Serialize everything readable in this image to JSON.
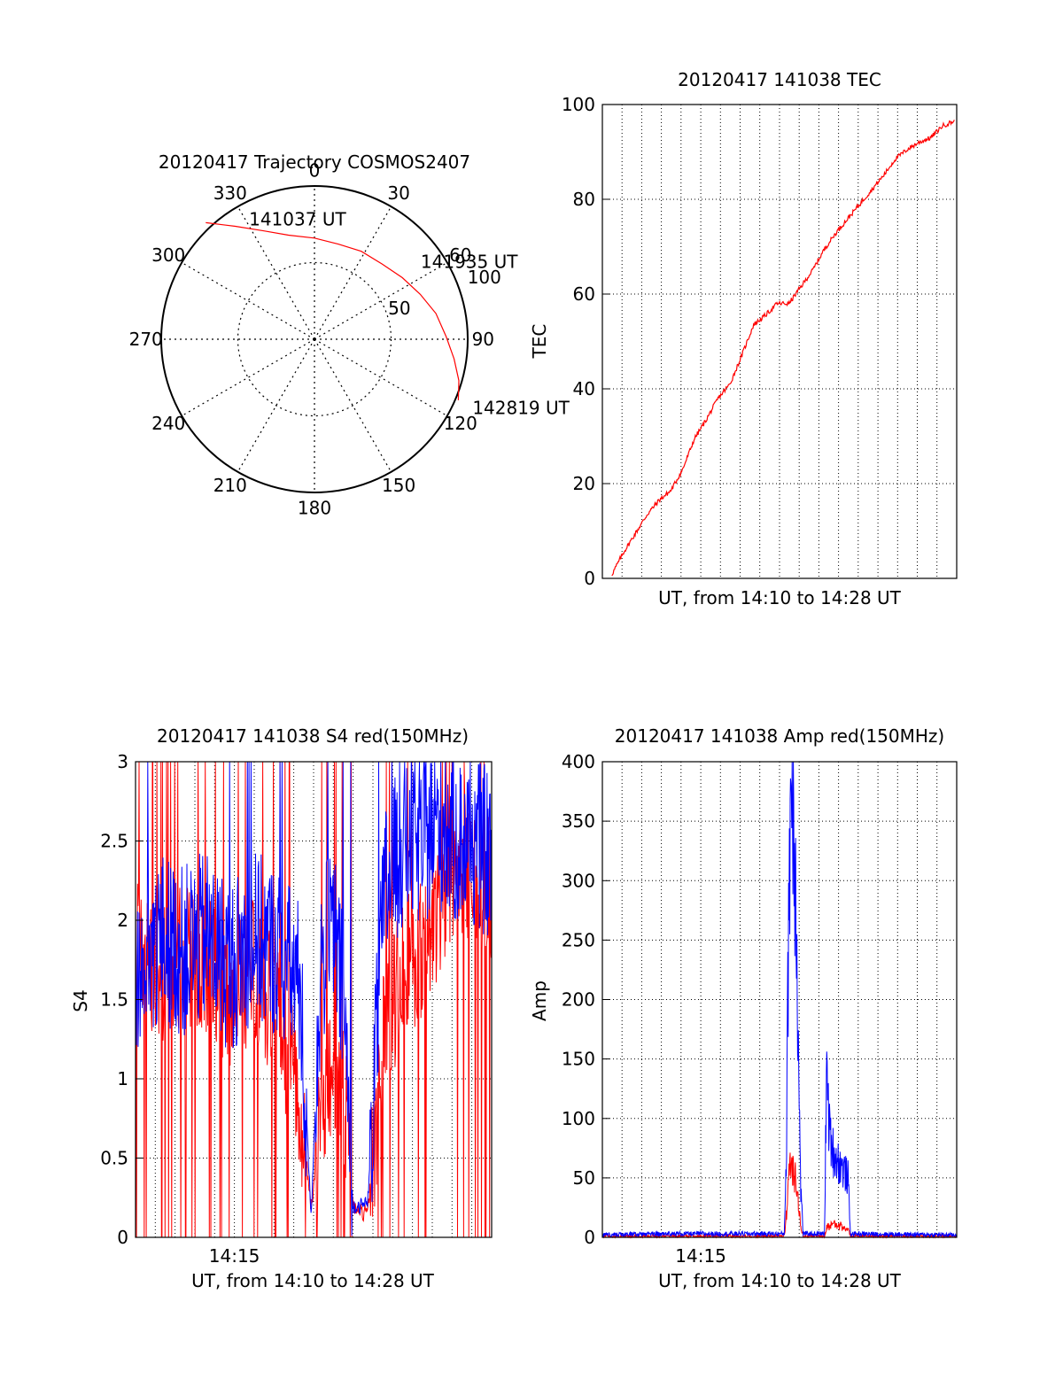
{
  "colors": {
    "red": "#ff0000",
    "blue": "#0000ff",
    "axis": "#000000",
    "grid": "#000000",
    "background": "#ffffff"
  },
  "chart_data": [
    {
      "id": "trajectory",
      "type": "polar",
      "title": "20120417 Trajectory COSMOS2407",
      "azimuth_labels": [
        "0",
        "30",
        "60",
        "90",
        "120",
        "150",
        "180",
        "210",
        "240",
        "270",
        "300",
        "330"
      ],
      "azimuth_values_deg": [
        0,
        30,
        60,
        90,
        120,
        150,
        180,
        210,
        240,
        270,
        300,
        330
      ],
      "radial_rings": [
        50,
        100
      ],
      "radial_labels": [
        "50",
        "100"
      ],
      "radial_range": [
        0,
        100
      ],
      "grid": true,
      "trajectory": [
        {
          "az": 317,
          "r": 104
        },
        {
          "az": 325,
          "r": 90
        },
        {
          "az": 335,
          "r": 78
        },
        {
          "az": 346,
          "r": 70
        },
        {
          "az": 0,
          "r": 66
        },
        {
          "az": 14,
          "r": 64
        },
        {
          "az": 28,
          "r": 65
        },
        {
          "az": 42,
          "r": 66
        },
        {
          "az": 55,
          "r": 70
        },
        {
          "az": 67,
          "r": 75
        },
        {
          "az": 78,
          "r": 81
        },
        {
          "az": 89,
          "r": 86
        },
        {
          "az": 98,
          "r": 92
        },
        {
          "az": 106,
          "r": 98
        },
        {
          "az": 113,
          "r": 102
        }
      ],
      "annotations": [
        {
          "text": "141037 UT",
          "az": 333,
          "r": 88
        },
        {
          "text": "141935 UT",
          "az": 55,
          "r": 88
        },
        {
          "text": "142819 UT",
          "az": 113,
          "r": 115
        }
      ]
    },
    {
      "id": "tec",
      "type": "line",
      "title": "20120417 141038 TEC",
      "xlabel": "UT, from 14:10 to 14:28 UT",
      "ylabel": "TEC",
      "xlim": [
        14.1667,
        14.4667
      ],
      "ylim": [
        0,
        100
      ],
      "yticks": [
        "0",
        "20",
        "40",
        "60",
        "80",
        "100"
      ],
      "grid": true,
      "series": [
        {
          "color": "red",
          "x_hours": [
            14.1747,
            14.1847,
            14.1947,
            14.2047,
            14.2147,
            14.2247,
            14.2347,
            14.2447,
            14.2547,
            14.2647,
            14.2747,
            14.2847,
            14.2947,
            14.3047,
            14.3147,
            14.3247,
            14.3347,
            14.3447,
            14.3547,
            14.3647,
            14.3747,
            14.3847,
            14.3947,
            14.4047,
            14.4147,
            14.4247,
            14.4347,
            14.4447,
            14.4547,
            14.4647
          ],
          "values": [
            0.8,
            5.5,
            9.5,
            13.5,
            16.5,
            18.5,
            23,
            29.5,
            33.5,
            38,
            41,
            47,
            53.5,
            55.5,
            58,
            58,
            61.5,
            65,
            69.5,
            73,
            76,
            79,
            82,
            85,
            88.5,
            90.5,
            92,
            93,
            95.5,
            96.5
          ]
        }
      ]
    },
    {
      "id": "s4",
      "type": "line",
      "title": "20120417 141038 S4 red(150MHz)",
      "xlabel": "UT, from 14:10 to 14:28 UT",
      "ylabel": "S4",
      "xlim": [
        14.1667,
        14.4667
      ],
      "ylim": [
        0,
        3
      ],
      "yticks": [
        "0",
        "0.5",
        "1",
        "1.5",
        "2",
        "2.5",
        "3"
      ],
      "xticks": [
        {
          "value": 14.25,
          "label": "14:15"
        }
      ],
      "grid": true,
      "series": [
        {
          "color": "red",
          "x_hours": [
            14.1667,
            14.1867,
            14.2067,
            14.2267,
            14.2467,
            14.2667,
            14.2867,
            14.3047,
            14.3147,
            14.3227,
            14.3327,
            14.3427,
            14.3497,
            14.3587,
            14.3627,
            14.3767,
            14.3927,
            14.4067,
            14.4227,
            14.4367,
            14.4507,
            14.4667
          ],
          "values": [
            1.8,
            1.6,
            1.8,
            1.7,
            1.5,
            1.7,
            1.4,
            0.9,
            0.18,
            0.8,
            1.0,
            0.9,
            0.2,
            0.15,
            0.2,
            1.3,
            1.7,
            1.8,
            2.1,
            2.4,
            2.3,
            2.2
          ]
        },
        {
          "color": "blue",
          "x_hours": [
            14.1667,
            14.1867,
            14.2067,
            14.2267,
            14.2467,
            14.2667,
            14.2867,
            14.3047,
            14.3147,
            14.3227,
            14.3327,
            14.3427,
            14.3497,
            14.3587,
            14.3627,
            14.3767,
            14.3927,
            14.4067,
            14.4227,
            14.4367,
            14.4507,
            14.4667
          ],
          "values": [
            1.6,
            1.9,
            1.8,
            1.9,
            1.7,
            1.9,
            1.8,
            1.6,
            0.15,
            1.7,
            2.0,
            1.4,
            0.2,
            0.2,
            0.25,
            2.2,
            2.5,
            2.5,
            2.6,
            2.5,
            2.5,
            2.4
          ]
        }
      ]
    },
    {
      "id": "amp",
      "type": "line",
      "title": "20120417 141038 Amp red(150MHz)",
      "xlabel": "UT, from 14:10 to 14:28 UT",
      "ylabel": "Amp",
      "xlim": [
        14.1667,
        14.4667
      ],
      "ylim": [
        0,
        400
      ],
      "yticks": [
        "0",
        "50",
        "100",
        "150",
        "200",
        "250",
        "300",
        "350",
        "400"
      ],
      "xticks": [
        {
          "value": 14.25,
          "label": "14:15"
        }
      ],
      "grid": true,
      "series": [
        {
          "color": "red",
          "x_hours": [
            14.1667,
            14.2807,
            14.3207,
            14.3227,
            14.3247,
            14.3267,
            14.3307,
            14.3347,
            14.3367,
            14.3547,
            14.3567,
            14.3627,
            14.3747,
            14.3767,
            14.4667
          ],
          "values": [
            1,
            1,
            1,
            20,
            50,
            60,
            50,
            10,
            1,
            1,
            8,
            12,
            6,
            1,
            1
          ]
        },
        {
          "color": "blue",
          "x_hours": [
            14.1667,
            14.2207,
            14.2807,
            14.3207,
            14.3227,
            14.3247,
            14.3267,
            14.3287,
            14.3307,
            14.3327,
            14.3347,
            14.3367,
            14.3547,
            14.3567,
            14.3587,
            14.3627,
            14.3687,
            14.3747,
            14.3767,
            14.4667
          ],
          "values": [
            2,
            3,
            3,
            3,
            80,
            310,
            385,
            350,
            300,
            150,
            40,
            3,
            3,
            145,
            90,
            70,
            60,
            50,
            3,
            2
          ]
        }
      ]
    }
  ]
}
